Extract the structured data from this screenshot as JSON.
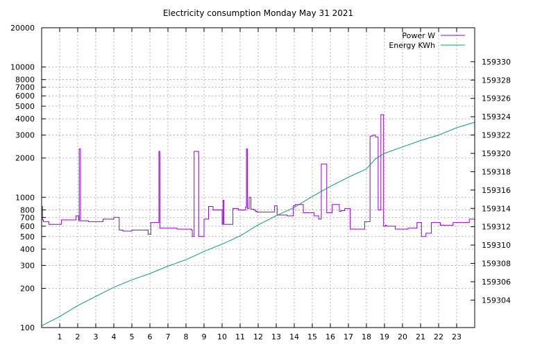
{
  "chart_data": {
    "type": "line",
    "title": "Electricity consumption Monday May 31 2021",
    "x": {
      "range": [
        0,
        24
      ],
      "ticks": [
        1,
        2,
        3,
        4,
        5,
        6,
        7,
        8,
        9,
        10,
        11,
        12,
        13,
        14,
        15,
        16,
        17,
        18,
        19,
        20,
        21,
        22,
        23
      ],
      "tick_labels": [
        "1",
        "2",
        "3",
        "4",
        "5",
        "6",
        "7",
        "8",
        "9",
        "10",
        "11",
        "12",
        "13",
        "14",
        "15",
        "16",
        "17",
        "18",
        "19",
        "20",
        "21",
        "22",
        "23"
      ]
    },
    "y_left": {
      "scale": "log",
      "range": [
        100,
        20000
      ],
      "ticks": [
        100,
        200,
        300,
        400,
        500,
        600,
        700,
        800,
        1000,
        2000,
        3000,
        4000,
        5000,
        6000,
        7000,
        8000,
        10000,
        20000
      ],
      "tick_labels": [
        "100",
        "200",
        "300",
        "400",
        "500",
        "600",
        "700",
        "800",
        "1000",
        "2000",
        "3000",
        "4000",
        "5000",
        "6000",
        "7000",
        "8000",
        "10000",
        "20000"
      ]
    },
    "y_right": {
      "scale": "linear",
      "range": [
        159301.0,
        159333.7
      ],
      "ticks": [
        159304,
        159306,
        159308,
        159310,
        159312,
        159314,
        159316,
        159318,
        159320,
        159322,
        159324,
        159326,
        159328,
        159330
      ],
      "tick_labels": [
        "159304",
        "159306",
        "159308",
        "159310",
        "159312",
        "159314",
        "159316",
        "159318",
        "159320",
        "159322",
        "159324",
        "159326",
        "159328",
        "159330"
      ]
    },
    "grid": true,
    "legend_position": "top-right",
    "series": [
      {
        "name": "Power W",
        "axis": "left",
        "color": "#9400d3",
        "step": true,
        "x": [
          0,
          0.05,
          0.1,
          0.4,
          1.1,
          1.9,
          2.05,
          2.08,
          2.15,
          2.6,
          3.4,
          4.0,
          4.3,
          4.5,
          5.0,
          5.6,
          5.9,
          6.05,
          6.5,
          6.55,
          7.5,
          8.3,
          8.35,
          8.45,
          8.7,
          9.0,
          9.25,
          9.5,
          10.0,
          10.05,
          10.1,
          10.6,
          10.9,
          11.3,
          11.35,
          11.4,
          11.5,
          11.6,
          11.75,
          11.85,
          11.95,
          12.2,
          12.5,
          12.9,
          13.05,
          13.6,
          13.95,
          14.05,
          14.5,
          15.1,
          15.35,
          15.5,
          15.8,
          16.1,
          16.5,
          16.6,
          16.8,
          17.1,
          17.9,
          18.2,
          18.35,
          18.5,
          18.65,
          18.8,
          18.95,
          19.05,
          19.1,
          19.6,
          20.3,
          20.8,
          21.05,
          21.3,
          21.6,
          22.1,
          22.4,
          22.8,
          23.7
        ],
        "values": [
          850,
          670,
          650,
          620,
          670,
          720,
          660,
          2350,
          660,
          650,
          680,
          700,
          560,
          550,
          560,
          560,
          520,
          640,
          2250,
          580,
          570,
          560,
          500,
          2250,
          500,
          680,
          850,
          800,
          620,
          950,
          620,
          820,
          800,
          840,
          2350,
          820,
          1000,
          810,
          800,
          780,
          770,
          770,
          770,
          860,
          730,
          720,
          860,
          880,
          760,
          720,
          680,
          1800,
          760,
          880,
          780,
          790,
          820,
          570,
          650,
          2950,
          3000,
          2900,
          800,
          4300,
          600,
          610,
          600,
          570,
          580,
          640,
          500,
          530,
          640,
          610,
          610,
          640,
          680
        ]
      },
      {
        "name": "Energy KWh",
        "axis": "right",
        "color": "#009e73",
        "x": [
          0,
          1,
          2,
          3,
          4,
          5,
          6,
          7,
          8,
          9,
          10,
          11,
          12,
          13,
          14,
          15,
          16,
          17,
          18,
          18.5,
          19,
          20,
          21,
          22,
          23,
          24
        ],
        "values": [
          159301.2,
          159302.2,
          159303.4,
          159304.4,
          159305.4,
          159306.2,
          159306.9,
          159307.7,
          159308.4,
          159309.3,
          159310.1,
          159311.0,
          159312.2,
          159313.2,
          159314.1,
          159315.3,
          159316.4,
          159317.4,
          159318.3,
          159319.4,
          159320.0,
          159320.7,
          159321.4,
          159322.0,
          159322.8,
          159323.4
        ]
      }
    ]
  }
}
